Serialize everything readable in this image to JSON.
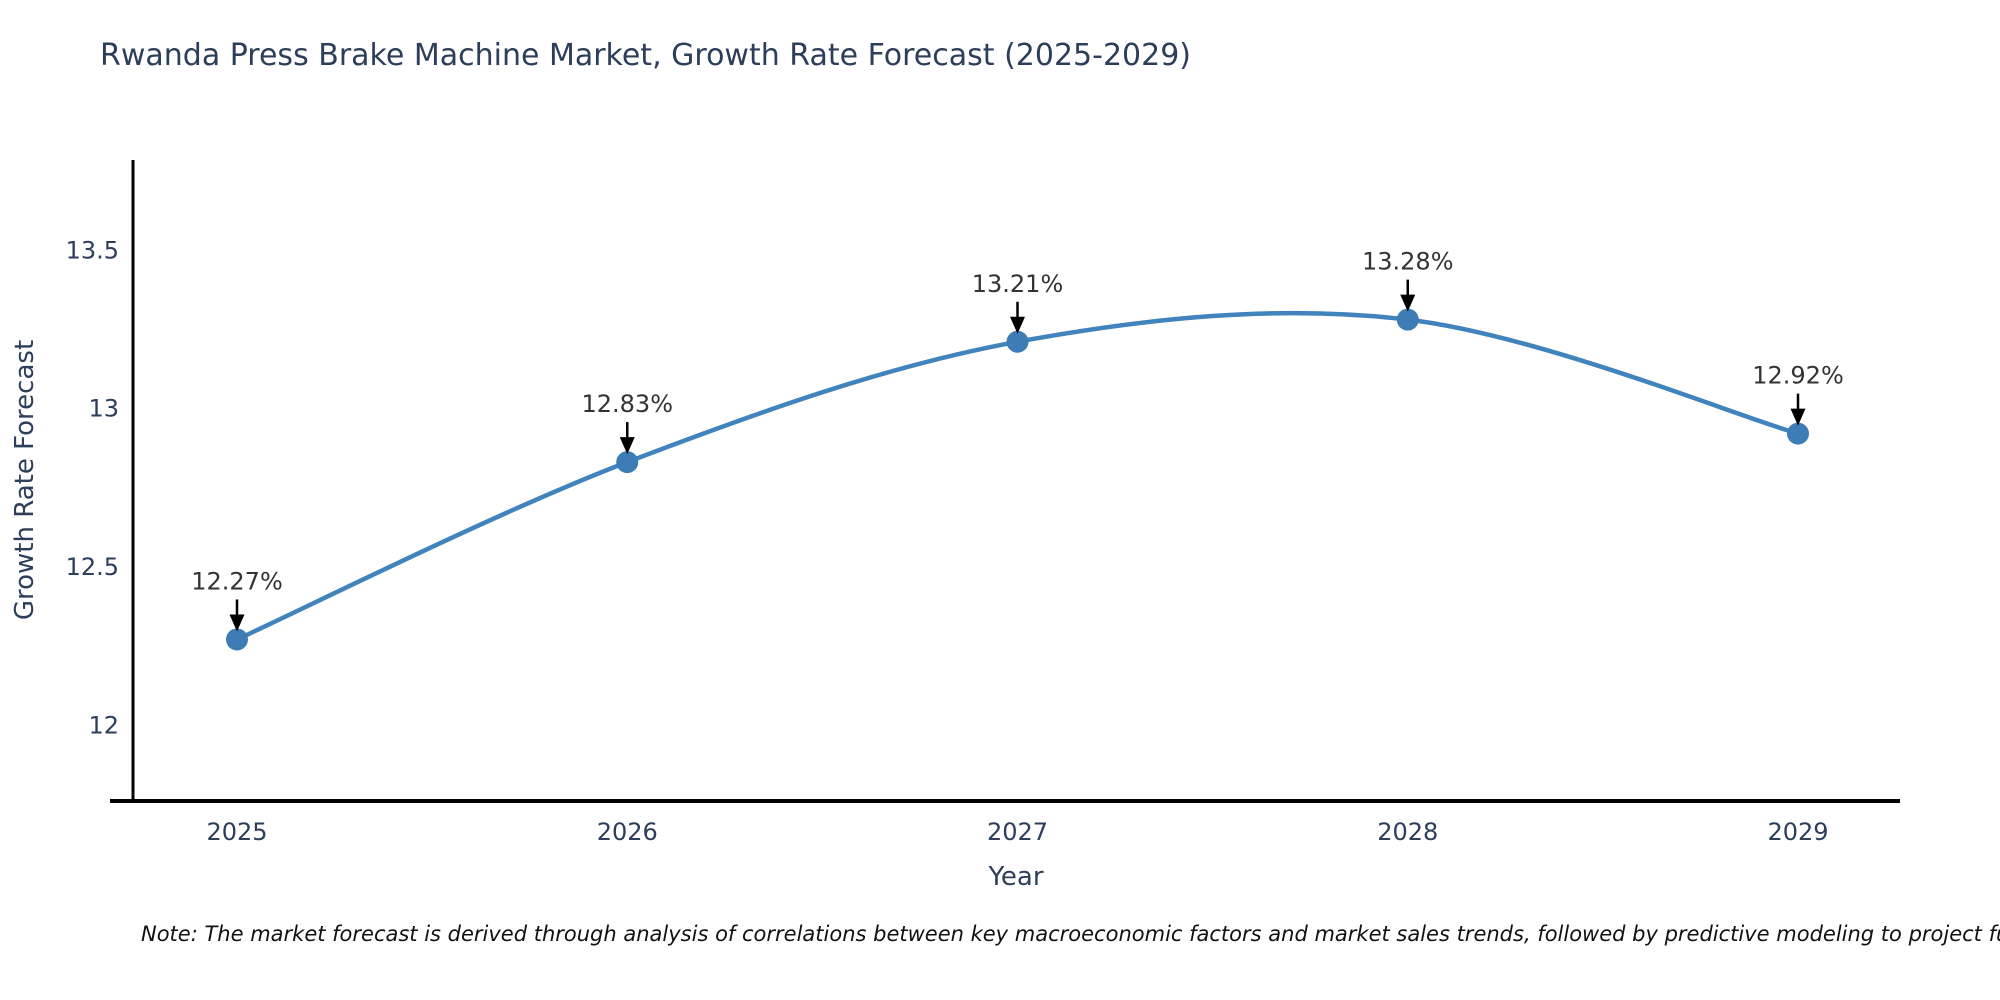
{
  "page": {
    "background": "#ffffff"
  },
  "chart_data": {
    "type": "line",
    "title": "Rwanda Press Brake Machine Market, Growth Rate Forecast (2025-2029)",
    "xlabel": "Year",
    "ylabel": "Growth Rate Forecast",
    "categories": [
      "2025",
      "2026",
      "2027",
      "2028",
      "2029"
    ],
    "values": [
      12.27,
      12.83,
      13.21,
      13.28,
      12.92
    ],
    "point_labels": [
      "12.27%",
      "12.83%",
      "13.21%",
      "13.28%",
      "12.92%"
    ],
    "yticks": [
      12,
      12.5,
      13,
      13.5
    ],
    "ytick_labels": [
      "12",
      "12.5",
      "13",
      "13.5"
    ],
    "ylim": [
      11.763,
      13.784
    ],
    "curve": "smooth",
    "grid": false,
    "legend": false,
    "line_color": "#4183bd",
    "marker_color": "#3d7cb5",
    "spine_color": "#000000",
    "annotation_arrow_color": "#000000",
    "annotation_text_color": "#333333",
    "tick_text_color": "#2c3e5a"
  },
  "note": {
    "text": "Note: The market forecast is derived through analysis of correlations between key macroeconomic factors and market sales trends, followed by predictive modeling to project future sal"
  }
}
